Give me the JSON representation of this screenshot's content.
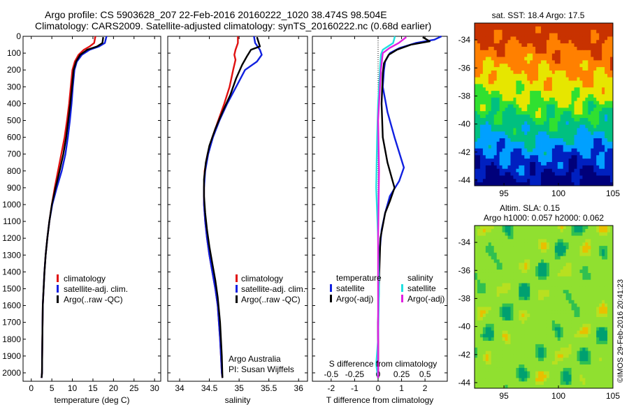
{
  "header": {
    "line1": "Argo profile: CS 5903628_207 22-Feb-2016 20160222_1020 38.474S 98.504E",
    "line2": "Climatology: CARS2009. Satellite-adjusted climatology: synTS_20160222.nc (0.68d earlier)"
  },
  "map_sst": {
    "title": "sat. SST: 18.4 Argo: 17.5",
    "yticks": [
      "-34",
      "-36",
      "-38",
      "-40",
      "-42",
      "-44"
    ],
    "xticks": [
      "95",
      "100",
      "105"
    ]
  },
  "map_sla": {
    "title1": "Altim. SLA: 0.15",
    "title2": "Argo h1000: 0.057 h2000: 0.062",
    "yticks": [
      "-34",
      "-36",
      "-38",
      "-40",
      "-42",
      "-44"
    ],
    "xticks": [
      "95",
      "100",
      "105"
    ]
  },
  "credit": "©IMOS 29-Feb-2016 20:41:23",
  "attribution": {
    "line1": "Argo Australia",
    "line2": "PI: Susan Wijffels"
  },
  "colors": {
    "climatology": "#e01010",
    "satellite": "#1020e0",
    "argo": "#000000",
    "cyan": "#20e0e0",
    "magenta": "#e020e0"
  },
  "chart_data": [
    {
      "type": "line",
      "xlabel": "temperature (deg C)",
      "ylabel": "",
      "xlim": [
        -2,
        31.5
      ],
      "ylim": [
        2050,
        0
      ],
      "xticks": [
        "0",
        "5",
        "10",
        "15",
        "20",
        "25",
        "30"
      ],
      "yticks": [
        "0",
        "100",
        "200",
        "300",
        "400",
        "500",
        "600",
        "700",
        "800",
        "900",
        "1000",
        "1100",
        "1200",
        "1300",
        "1400",
        "1500",
        "1600",
        "1700",
        "1800",
        "1900",
        "2000"
      ],
      "legend": [
        "climatology",
        "satellite-adj. clim.",
        "Argo(..raw -QC)"
      ],
      "series": [
        {
          "name": "climatology",
          "x": [
            15.6,
            15.3,
            14.2,
            12.8,
            11.5,
            10.6,
            10.0,
            9.6,
            9.2,
            8.7,
            8.1,
            7.3,
            6.5,
            5.7,
            5.0,
            4.4,
            3.9,
            3.5,
            3.2,
            3.0,
            2.8,
            2.7,
            2.6,
            2.5
          ],
          "y": [
            0,
            40,
            60,
            80,
            110,
            150,
            200,
            300,
            400,
            500,
            600,
            700,
            800,
            900,
            1000,
            1100,
            1200,
            1300,
            1400,
            1500,
            1600,
            1800,
            2000,
            2030
          ]
        },
        {
          "name": "satellite-adj. clim.",
          "x": [
            18.3,
            17.9,
            16.5,
            14.2,
            12.3,
            11.1,
            10.5,
            10.1,
            9.8,
            9.4,
            8.9,
            8.3,
            7.4,
            6.2,
            5.1,
            4.4,
            3.9,
            3.5,
            3.2,
            3.0,
            2.8,
            2.7,
            2.6,
            2.5
          ],
          "y": [
            0,
            40,
            60,
            80,
            110,
            150,
            200,
            300,
            400,
            500,
            600,
            700,
            800,
            900,
            1000,
            1100,
            1200,
            1300,
            1400,
            1500,
            1600,
            1800,
            2000,
            2030
          ]
        },
        {
          "name": "Argo(..raw -QC)",
          "x": [
            17.5,
            17.3,
            16.0,
            13.6,
            11.9,
            10.9,
            10.3,
            9.9,
            9.5,
            9.0,
            8.5,
            7.8,
            6.9,
            5.9,
            5.0,
            4.4,
            3.9,
            3.5,
            3.2,
            3.0,
            2.8,
            2.7,
            2.6,
            2.5
          ],
          "y": [
            5,
            40,
            60,
            80,
            110,
            150,
            200,
            300,
            400,
            500,
            600,
            700,
            800,
            900,
            1000,
            1100,
            1200,
            1300,
            1400,
            1500,
            1600,
            1800,
            2000,
            2030
          ]
        }
      ]
    },
    {
      "type": "line",
      "xlabel": "salinity",
      "ylabel": "",
      "xlim": [
        33.8,
        36.15
      ],
      "ylim": [
        2050,
        0
      ],
      "xticks": [
        "34",
        "34.5",
        "35",
        "35.5",
        "36"
      ],
      "legend": [
        "climatology",
        "satellite-adj. clim.",
        "Argo(..raw -QC)"
      ],
      "series": [
        {
          "name": "climatology",
          "x": [
            34.98,
            34.98,
            34.94,
            34.92,
            34.94,
            34.9,
            34.84,
            34.75,
            34.65,
            34.55,
            34.47,
            34.42,
            34.41,
            34.41,
            34.43,
            34.46,
            34.5,
            34.55,
            34.6,
            34.64,
            34.68,
            34.71,
            34.72
          ],
          "y": [
            0,
            40,
            80,
            110,
            140,
            200,
            300,
            400,
            500,
            600,
            700,
            800,
            900,
            1000,
            1100,
            1200,
            1300,
            1400,
            1500,
            1600,
            1800,
            2000,
            2030
          ]
        },
        {
          "name": "satellite-adj. clim.",
          "x": [
            35.25,
            35.27,
            35.35,
            35.38,
            35.3,
            35.1,
            34.95,
            34.8,
            34.67,
            34.56,
            34.48,
            34.43,
            34.41,
            34.41,
            34.43,
            34.46,
            34.5,
            34.55,
            34.6,
            34.64,
            34.68,
            34.71,
            34.72
          ],
          "y": [
            0,
            40,
            80,
            110,
            150,
            200,
            300,
            400,
            500,
            600,
            700,
            800,
            900,
            1000,
            1100,
            1200,
            1300,
            1400,
            1500,
            1600,
            1800,
            2000,
            2030
          ]
        },
        {
          "name": "Argo(..raw -QC)",
          "x": [
            35.3,
            35.35,
            35.2,
            35.13,
            35.05,
            34.95,
            34.85,
            34.72,
            34.6,
            34.5,
            34.44,
            34.41,
            34.41,
            34.43,
            34.46,
            34.5,
            34.55,
            34.6,
            34.64,
            34.68,
            34.71,
            34.72
          ],
          "y": [
            5,
            60,
            80,
            120,
            170,
            250,
            350,
            450,
            550,
            650,
            750,
            850,
            950,
            1050,
            1150,
            1250,
            1350,
            1450,
            1550,
            1700,
            1900,
            2030
          ]
        }
      ]
    },
    {
      "type": "line",
      "xlabel": "T difference from climatology",
      "title_top": "S difference from climatology",
      "xlim": [
        -2.8,
        2.95
      ],
      "ylim": [
        2050,
        0
      ],
      "xticks": [
        "-2",
        "-1",
        "0",
        "1",
        "2"
      ],
      "xticks_top": [
        "-0.5",
        "-0.25",
        "0",
        "0.25",
        "0.5"
      ],
      "legend_groups": {
        "temperature": [
          "satellite",
          "Argo(-adj)"
        ],
        "salinity": [
          "satellite",
          "Argo(-adj)"
        ]
      },
      "series": [
        {
          "name": "T satellite",
          "x": [
            2.7,
            2.4,
            1.6,
            0.9,
            0.5,
            0.3,
            0.25,
            0.2,
            0.4,
            0.7,
            1.1,
            0.9,
            0.5,
            0.3,
            0.15,
            0.05,
            0.02,
            0.0,
            0.0,
            0.0
          ],
          "y": [
            0,
            20,
            40,
            70,
            100,
            150,
            200,
            300,
            450,
            600,
            780,
            860,
            950,
            1050,
            1150,
            1300,
            1500,
            1700,
            1900,
            2030
          ]
        },
        {
          "name": "T Argo(-adj)",
          "x": [
            1.9,
            2.2,
            1.4,
            0.8,
            0.45,
            0.25,
            0.2,
            0.15,
            0.2,
            0.4,
            0.6,
            0.7,
            0.5,
            0.3,
            0.1,
            0.05,
            0.0,
            0.0
          ],
          "y": [
            5,
            30,
            50,
            80,
            110,
            160,
            220,
            400,
            600,
            750,
            850,
            900,
            980,
            1050,
            1200,
            1400,
            1700,
            2030
          ]
        },
        {
          "name": "S satellite",
          "x": [
            0.18,
            0.16,
            0.05,
            0.03,
            0.02,
            0.0,
            -0.01,
            -0.02,
            0.0,
            0.01,
            0.0,
            -0.02,
            0.0
          ],
          "y": [
            0,
            40,
            80,
            110,
            200,
            400,
            600,
            900,
            1200,
            1500,
            1800,
            1950,
            2030
          ]
        },
        {
          "name": "S Argo(-adj)",
          "x": [
            0.3,
            0.22,
            0.12,
            0.05,
            0.03,
            0.0,
            0.01,
            0.0,
            0.0,
            0.0
          ],
          "y": [
            5,
            40,
            70,
            100,
            200,
            500,
            800,
            1200,
            1700,
            2030
          ]
        }
      ]
    }
  ]
}
